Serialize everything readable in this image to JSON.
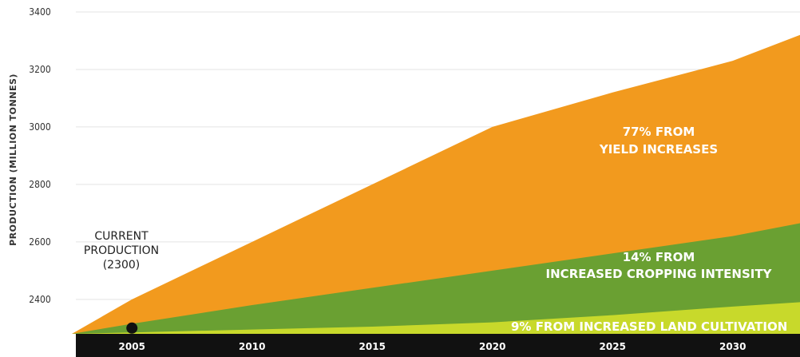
{
  "chart_data": {
    "type": "area",
    "ylabel": "PRODUCTION (MILLION TONNES)",
    "xlabel": "",
    "ylim": [
      2280,
      3400
    ],
    "xlim": [
      2002.5,
      2032.8
    ],
    "yticks": [
      2400,
      2600,
      2800,
      3000,
      3200,
      3400
    ],
    "xticks": [
      2005,
      2010,
      2015,
      2020,
      2025,
      2030
    ],
    "grid": true,
    "stacking": "stacked from baseline",
    "series": [
      {
        "color": "#c8d92b",
        "x": [
          2002.5,
          2005,
          2010,
          2015,
          2020,
          2025,
          2030,
          2032.8
        ],
        "y": [
          2280,
          2285,
          2295,
          2305,
          2320,
          2345,
          2375,
          2390
        ]
      },
      {
        "color": "#6aa032",
        "x": [
          2002.5,
          2005,
          2010,
          2015,
          2020,
          2025,
          2030,
          2032.8
        ],
        "y": [
          2280,
          2315,
          2380,
          2440,
          2500,
          2560,
          2620,
          2665
        ]
      },
      {
        "color": "#f29a1e",
        "x": [
          2002.5,
          2005,
          2010,
          2015,
          2020,
          2025,
          2030,
          2032.8
        ],
        "y": [
          2280,
          2400,
          2600,
          2800,
          3000,
          3120,
          3230,
          3320
        ]
      }
    ],
    "annotations": [
      {
        "id": "yield",
        "lines": [
          "77% FROM",
          "YIELD INCREASES"
        ]
      },
      {
        "id": "cropping",
        "lines": [
          "14% FROM",
          "INCREASED CROPPING INTENSITY"
        ]
      },
      {
        "id": "land",
        "lines": [
          "9% FROM INCREASED LAND CULTIVATION"
        ]
      },
      {
        "id": "current",
        "lines": [
          "CURRENT",
          "PRODUCTION",
          "(2300)"
        ]
      }
    ],
    "marker": {
      "x": 2005,
      "y": 2300,
      "label": "CURRENT PRODUCTION (2300)"
    }
  }
}
